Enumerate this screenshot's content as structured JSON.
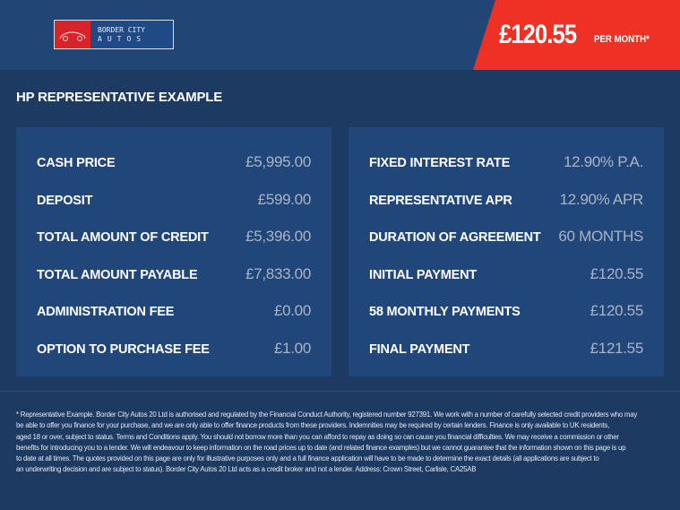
{
  "brand": {
    "line1": "BORDER CITY",
    "line2": "AUTOS",
    "logo_icon": "car-icon",
    "red": "#d8232a"
  },
  "price_badge": {
    "amount": "£120.55",
    "label": "PER MONTH*",
    "color": "#ee3124"
  },
  "section_title": "HP REPRESENTATIVE EXAMPLE",
  "left_rows": [
    {
      "label": "CASH PRICE",
      "value": "£5,995.00"
    },
    {
      "label": "DEPOSIT",
      "value": "£599.00"
    },
    {
      "label": "TOTAL AMOUNT OF CREDIT",
      "value": "£5,396.00"
    },
    {
      "label": "TOTAL AMOUNT PAYABLE",
      "value": "£7,833.00"
    },
    {
      "label": "ADMINISTRATION FEE",
      "value": "£0.00"
    },
    {
      "label": "OPTION TO PURCHASE FEE",
      "value": "£1.00"
    }
  ],
  "right_rows": [
    {
      "label": "FIXED INTEREST RATE",
      "value": "12.90% P.A."
    },
    {
      "label": "REPRESENTATIVE APR",
      "value": "12.90% APR"
    },
    {
      "label": "DURATION OF AGREEMENT",
      "value": "60 MONTHS"
    },
    {
      "label": "INITIAL PAYMENT",
      "value": "£120.55"
    },
    {
      "label": "58 MONTHLY PAYMENTS",
      "value": "£120.55"
    },
    {
      "label": "FINAL PAYMENT",
      "value": "£121.55"
    }
  ],
  "disclaimer": [
    "* Representative Example. Border City Autos 20 Ltd is authorised and regulated by the Financial Conduct Authority, registered number 927391. We work with a number of carefully selected credit providers who may",
    "be able to offer you finance for your purchase, and we are only able to offer finance products from these providers. Indemnities may be required by certain lenders. Finance is only available to UK residents,",
    "aged 18 or over, subject to status. Terms and Conditions apply. You should not borrow more than you can afford to repay as doing so can cause you financial difficulties. We may receive a commission or other",
    "benefits for introducing you to a lender. We will endeavour to keep information on the road prices up to date (and related finance examples) but we cannot guarantee that the information shown on this page is up",
    "to date at all times. The quotes provided on this page are only for illustrative purposes only and a full finance application will have to be made to determine the exact details (all applications are subject to",
    "an underwriting decision and are subject to status). Border City Autos 20 Ltd acts as a credit broker and not a lender. Address: Crown Street, Carlisle, CA25AB"
  ]
}
